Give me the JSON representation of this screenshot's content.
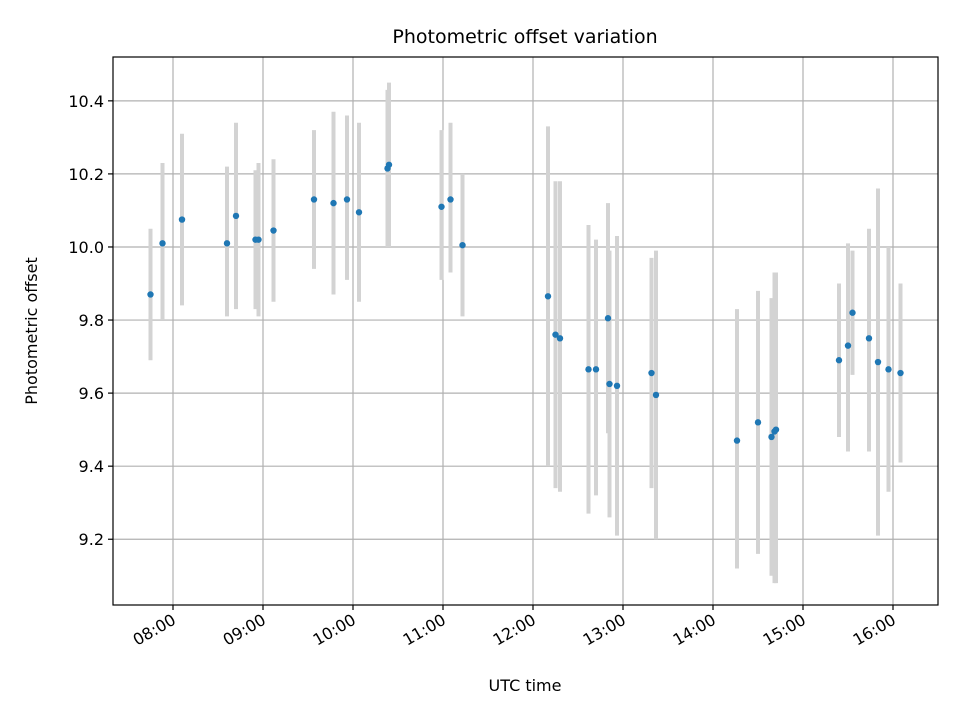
{
  "colors": {
    "point": "#1f77b4",
    "errorbar": "#d3d3d3",
    "grid": "#b0b0b0"
  },
  "chart_data": {
    "type": "scatter",
    "title": "Photometric offset variation",
    "xlabel": "UTC time",
    "ylabel": "Photometric offset",
    "xlim": [
      "07:20",
      "16:30"
    ],
    "ylim": [
      9.02,
      10.52
    ],
    "xticks": [
      "08:00",
      "09:00",
      "10:00",
      "11:00",
      "12:00",
      "13:00",
      "14:00",
      "15:00",
      "16:00"
    ],
    "yticks": [
      "9.2",
      "9.4",
      "9.6",
      "9.8",
      "10.0",
      "10.2",
      "10.4"
    ],
    "grid": true,
    "series": [
      {
        "points": [
          {
            "x": "07:45",
            "y": 9.87,
            "lo": 9.69,
            "hi": 10.05
          },
          {
            "x": "07:53",
            "y": 10.01,
            "lo": 9.8,
            "hi": 10.23
          },
          {
            "x": "08:06",
            "y": 10.075,
            "lo": 9.84,
            "hi": 10.31
          },
          {
            "x": "08:36",
            "y": 10.01,
            "lo": 9.81,
            "hi": 10.22
          },
          {
            "x": "08:42",
            "y": 10.085,
            "lo": 9.83,
            "hi": 10.34
          },
          {
            "x": "08:55",
            "y": 10.02,
            "lo": 9.83,
            "hi": 10.21
          },
          {
            "x": "08:57",
            "y": 10.02,
            "lo": 9.81,
            "hi": 10.23
          },
          {
            "x": "09:07",
            "y": 10.045,
            "lo": 9.85,
            "hi": 10.24
          },
          {
            "x": "09:34",
            "y": 10.13,
            "lo": 9.94,
            "hi": 10.32
          },
          {
            "x": "09:47",
            "y": 10.12,
            "lo": 9.87,
            "hi": 10.37
          },
          {
            "x": "09:56",
            "y": 10.13,
            "lo": 9.91,
            "hi": 10.36
          },
          {
            "x": "10:04",
            "y": 10.095,
            "lo": 9.85,
            "hi": 10.34
          },
          {
            "x": "10:23",
            "y": 10.215,
            "lo": 10.0,
            "hi": 10.43
          },
          {
            "x": "10:24",
            "y": 10.225,
            "lo": 10.0,
            "hi": 10.45
          },
          {
            "x": "10:59",
            "y": 10.11,
            "lo": 9.91,
            "hi": 10.32
          },
          {
            "x": "11:05",
            "y": 10.13,
            "lo": 9.93,
            "hi": 10.34
          },
          {
            "x": "11:13",
            "y": 10.005,
            "lo": 9.81,
            "hi": 10.2
          },
          {
            "x": "12:10",
            "y": 9.865,
            "lo": 9.4,
            "hi": 10.33
          },
          {
            "x": "12:15",
            "y": 9.76,
            "lo": 9.34,
            "hi": 10.18
          },
          {
            "x": "12:18",
            "y": 9.75,
            "lo": 9.33,
            "hi": 10.18
          },
          {
            "x": "12:37",
            "y": 9.665,
            "lo": 9.27,
            "hi": 10.06
          },
          {
            "x": "12:42",
            "y": 9.665,
            "lo": 9.32,
            "hi": 10.02
          },
          {
            "x": "12:50",
            "y": 9.805,
            "lo": 9.49,
            "hi": 10.12
          },
          {
            "x": "12:51",
            "y": 9.625,
            "lo": 9.26,
            "hi": 9.99
          },
          {
            "x": "12:56",
            "y": 9.62,
            "lo": 9.21,
            "hi": 10.03
          },
          {
            "x": "13:19",
            "y": 9.655,
            "lo": 9.34,
            "hi": 9.97
          },
          {
            "x": "13:22",
            "y": 9.595,
            "lo": 9.2,
            "hi": 9.99
          },
          {
            "x": "14:16",
            "y": 9.47,
            "lo": 9.12,
            "hi": 9.83
          },
          {
            "x": "14:30",
            "y": 9.52,
            "lo": 9.16,
            "hi": 9.88
          },
          {
            "x": "14:39",
            "y": 9.48,
            "lo": 9.1,
            "hi": 9.86
          },
          {
            "x": "14:41",
            "y": 9.495,
            "lo": 9.08,
            "hi": 9.93
          },
          {
            "x": "14:42",
            "y": 9.5,
            "lo": 9.08,
            "hi": 9.93
          },
          {
            "x": "15:24",
            "y": 9.69,
            "lo": 9.48,
            "hi": 9.9
          },
          {
            "x": "15:30",
            "y": 9.73,
            "lo": 9.44,
            "hi": 10.01
          },
          {
            "x": "15:33",
            "y": 9.82,
            "lo": 9.65,
            "hi": 9.99
          },
          {
            "x": "15:44",
            "y": 9.75,
            "lo": 9.44,
            "hi": 10.05
          },
          {
            "x": "15:50",
            "y": 9.685,
            "lo": 9.21,
            "hi": 10.16
          },
          {
            "x": "15:57",
            "y": 9.665,
            "lo": 9.33,
            "hi": 10.0
          },
          {
            "x": "16:05",
            "y": 9.655,
            "lo": 9.41,
            "hi": 9.9
          }
        ]
      }
    ]
  }
}
